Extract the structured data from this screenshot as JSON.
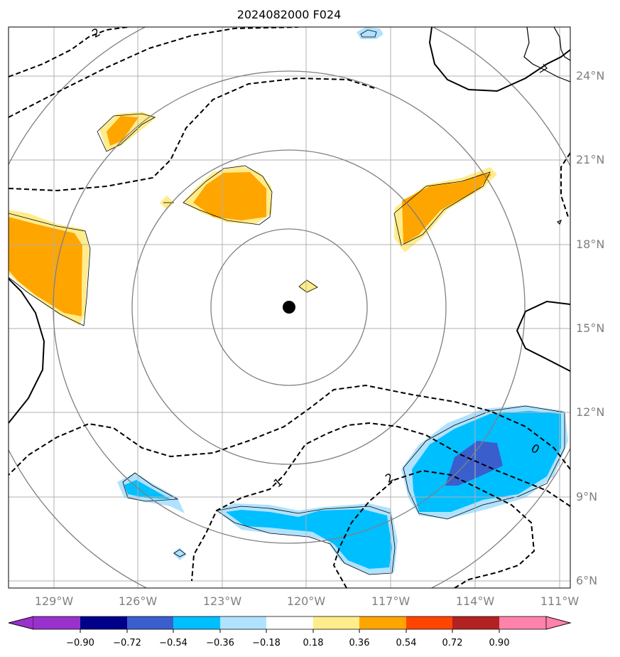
{
  "chart_data": {
    "type": "map-contour",
    "title": "2024082000 F024",
    "lon_ticks": [
      "129°W",
      "126°W",
      "123°W",
      "120°W",
      "117°W",
      "114°W",
      "111°W"
    ],
    "lat_ticks": [
      "24°N",
      "21°N",
      "18°N",
      "15°N",
      "12°N",
      "9°N",
      "6°N"
    ],
    "lon_range": [
      -130.6,
      -110.6
    ],
    "lat_range": [
      5.75,
      25.75
    ],
    "grid": true,
    "center_marker": {
      "lon": -120.6,
      "lat": 15.75
    },
    "range_rings": [
      2.8,
      5.6,
      8.4,
      11.2
    ],
    "colorbar": {
      "levels": [
        "−0.90",
        "−0.72",
        "−0.54",
        "−0.36",
        "−0.18",
        "0.18",
        "0.36",
        "0.54",
        "0.72",
        "0.90"
      ],
      "colors": [
        "#9932cc",
        "#00008b",
        "#3a5fcd",
        "#00bfff",
        "#b0e2ff",
        "#ffffff",
        "#ffec8b",
        "#ffa500",
        "#ff4500",
        "#b22222",
        "#ff82ab"
      ],
      "extend": "both"
    },
    "contour_labels": [
      "2",
      "1",
      "2",
      "0"
    ]
  }
}
